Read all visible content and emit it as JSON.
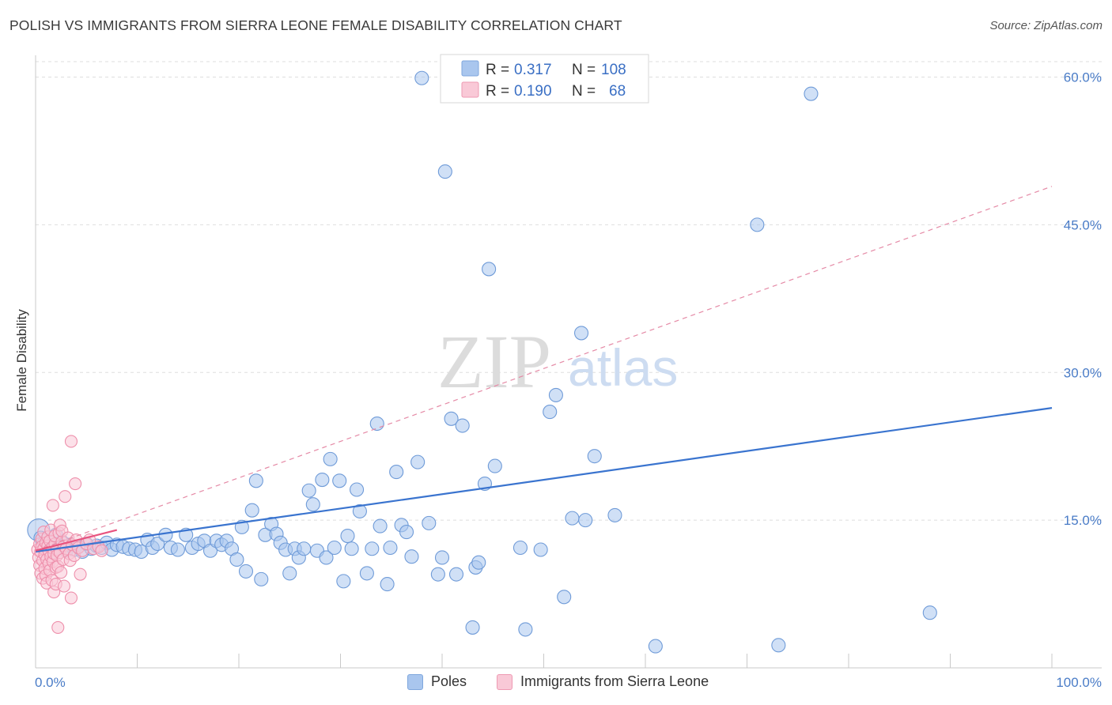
{
  "header": {
    "title": "POLISH VS IMMIGRANTS FROM SIERRA LEONE FEMALE DISABILITY CORRELATION CHART",
    "source": "Source: ZipAtlas.com"
  },
  "watermark": {
    "zip": "ZIP",
    "atlas": "atlas"
  },
  "legend": {
    "rows": [
      {
        "r_label": "R =",
        "r_value": "0.317",
        "n_label": "N =",
        "n_value": "108",
        "color": "#a9c6ee"
      },
      {
        "r_label": "R =",
        "r_value": "0.190",
        "n_label": "N =",
        "n_value": "68",
        "color": "#f5b6c8"
      }
    ]
  },
  "bottom_legend": [
    {
      "label": "Poles",
      "color": "#a9c6ee",
      "border": "#7fa7dd"
    },
    {
      "label": "Immigrants from Sierra Leone",
      "color": "#f9c9d7",
      "border": "#ee9ab3"
    }
  ],
  "chart_data": {
    "type": "scatter",
    "title": "POLISH VS IMMIGRANTS FROM SIERRA LEONE FEMALE DISABILITY CORRELATION CHART",
    "xlabel": "",
    "ylabel": "Female Disability",
    "xlim": [
      0,
      100
    ],
    "ylim": [
      0,
      62
    ],
    "x_ticks_labeled": [
      "0.0%",
      "100.0%"
    ],
    "y_ticks": [
      15,
      30,
      45,
      60
    ],
    "y_tick_labels": [
      "15.0%",
      "30.0%",
      "45.0%",
      "60.0%"
    ],
    "grid": "horizontal dashed",
    "legend_position": "top-center",
    "series": [
      {
        "name": "Poles",
        "color": "#a9c6ee",
        "stroke": "#6f9bd8",
        "trend": {
          "x": [
            0,
            100
          ],
          "y": [
            11.8,
            26.4
          ],
          "style": "solid",
          "color": "#3a74cf"
        },
        "points": [
          [
            0.3,
            14.0
          ],
          [
            0.5,
            13.2
          ],
          [
            0.8,
            12.6
          ],
          [
            1.0,
            12.0
          ],
          [
            1.2,
            13.0
          ],
          [
            1.5,
            12.4
          ],
          [
            1.8,
            11.8
          ],
          [
            2.0,
            13.5
          ],
          [
            2.3,
            12.2
          ],
          [
            2.6,
            12.8
          ],
          [
            3.0,
            11.9
          ],
          [
            3.4,
            12.5
          ],
          [
            3.8,
            12.0
          ],
          [
            4.2,
            12.3
          ],
          [
            4.6,
            11.8
          ],
          [
            5.0,
            12.6
          ],
          [
            5.5,
            12.1
          ],
          [
            6.0,
            12.4
          ],
          [
            6.5,
            12.2
          ],
          [
            7.0,
            12.7
          ],
          [
            7.5,
            12.0
          ],
          [
            8.0,
            12.5
          ],
          [
            8.6,
            12.3
          ],
          [
            9.2,
            12.1
          ],
          [
            9.8,
            12.0
          ],
          [
            10.4,
            11.8
          ],
          [
            11.0,
            13.0
          ],
          [
            11.5,
            12.2
          ],
          [
            12.0,
            12.6
          ],
          [
            12.8,
            13.5
          ],
          [
            13.3,
            12.2
          ],
          [
            14.0,
            12.0
          ],
          [
            14.8,
            13.5
          ],
          [
            15.4,
            12.2
          ],
          [
            16.0,
            12.6
          ],
          [
            16.6,
            12.9
          ],
          [
            17.2,
            11.9
          ],
          [
            17.8,
            12.9
          ],
          [
            18.3,
            12.5
          ],
          [
            18.8,
            12.9
          ],
          [
            19.3,
            12.1
          ],
          [
            19.8,
            11.0
          ],
          [
            20.3,
            14.3
          ],
          [
            20.7,
            9.8
          ],
          [
            21.3,
            16.0
          ],
          [
            21.7,
            19.0
          ],
          [
            22.2,
            9.0
          ],
          [
            22.6,
            13.5
          ],
          [
            23.2,
            14.6
          ],
          [
            23.7,
            13.6
          ],
          [
            24.1,
            12.7
          ],
          [
            24.6,
            12.0
          ],
          [
            25.0,
            9.6
          ],
          [
            25.5,
            12.1
          ],
          [
            25.9,
            11.2
          ],
          [
            26.4,
            12.1
          ],
          [
            26.9,
            18.0
          ],
          [
            27.3,
            16.6
          ],
          [
            27.7,
            11.9
          ],
          [
            28.2,
            19.1
          ],
          [
            28.6,
            11.2
          ],
          [
            29.0,
            21.2
          ],
          [
            29.4,
            12.2
          ],
          [
            29.9,
            19.0
          ],
          [
            30.3,
            8.8
          ],
          [
            30.7,
            13.4
          ],
          [
            31.1,
            12.1
          ],
          [
            31.6,
            18.1
          ],
          [
            31.9,
            15.9
          ],
          [
            32.6,
            9.6
          ],
          [
            33.1,
            12.1
          ],
          [
            33.6,
            24.8
          ],
          [
            33.9,
            14.4
          ],
          [
            34.6,
            8.5
          ],
          [
            34.9,
            12.2
          ],
          [
            35.5,
            19.9
          ],
          [
            36.0,
            14.5
          ],
          [
            36.5,
            13.8
          ],
          [
            37.0,
            11.3
          ],
          [
            37.6,
            20.9
          ],
          [
            38.0,
            59.9
          ],
          [
            38.7,
            14.7
          ],
          [
            39.6,
            9.5
          ],
          [
            40.0,
            11.2
          ],
          [
            40.3,
            50.4
          ],
          [
            40.9,
            25.3
          ],
          [
            41.4,
            9.5
          ],
          [
            42.0,
            24.6
          ],
          [
            43.0,
            4.1
          ],
          [
            43.3,
            10.2
          ],
          [
            43.6,
            10.7
          ],
          [
            44.2,
            18.7
          ],
          [
            44.6,
            40.5
          ],
          [
            45.2,
            20.5
          ],
          [
            47.7,
            12.2
          ],
          [
            48.2,
            3.9
          ],
          [
            49.7,
            12.0
          ],
          [
            50.6,
            26.0
          ],
          [
            51.2,
            27.7
          ],
          [
            52.0,
            7.2
          ],
          [
            52.8,
            15.2
          ],
          [
            53.7,
            34.0
          ],
          [
            54.1,
            15.0
          ],
          [
            55.0,
            21.5
          ],
          [
            57.0,
            15.5
          ],
          [
            61.0,
            2.2
          ],
          [
            71.0,
            45.0
          ],
          [
            73.1,
            2.3
          ],
          [
            76.3,
            58.3
          ],
          [
            88.0,
            5.6
          ]
        ]
      },
      {
        "name": "Immigrants from Sierra Leone",
        "color": "#f9c9d7",
        "stroke": "#ee8fab",
        "trend_solid": {
          "x": [
            0,
            8
          ],
          "y": [
            11.9,
            14.0
          ],
          "style": "solid",
          "color": "#e8537f"
        },
        "trend_dashed": {
          "x": [
            0,
            100
          ],
          "y": [
            11.9,
            48.9
          ],
          "style": "dashed",
          "color": "#e58aa6"
        },
        "points": [
          [
            0.2,
            12.0
          ],
          [
            0.3,
            11.2
          ],
          [
            0.4,
            10.4
          ],
          [
            0.4,
            12.6
          ],
          [
            0.5,
            9.6
          ],
          [
            0.5,
            11.8
          ],
          [
            0.6,
            13.1
          ],
          [
            0.6,
            12.3
          ],
          [
            0.7,
            9.1
          ],
          [
            0.7,
            10.9
          ],
          [
            0.8,
            12.1
          ],
          [
            0.8,
            13.8
          ],
          [
            0.9,
            11.5
          ],
          [
            0.9,
            10.1
          ],
          [
            1.0,
            9.4
          ],
          [
            1.0,
            12.7
          ],
          [
            1.1,
            11.0
          ],
          [
            1.1,
            8.6
          ],
          [
            1.2,
            12.4
          ],
          [
            1.2,
            13.3
          ],
          [
            1.3,
            10.6
          ],
          [
            1.3,
            11.9
          ],
          [
            1.4,
            9.9
          ],
          [
            1.4,
            12.9
          ],
          [
            1.5,
            11.3
          ],
          [
            1.5,
            14.0
          ],
          [
            1.6,
            8.9
          ],
          [
            1.6,
            12.2
          ],
          [
            1.7,
            10.8
          ],
          [
            1.7,
            16.5
          ],
          [
            1.8,
            11.6
          ],
          [
            1.8,
            7.7
          ],
          [
            1.9,
            12.6
          ],
          [
            1.9,
            13.4
          ],
          [
            2.0,
            10.2
          ],
          [
            2.0,
            8.5
          ],
          [
            2.1,
            12.0
          ],
          [
            2.1,
            11.4
          ],
          [
            2.2,
            4.1
          ],
          [
            2.2,
            10.3
          ],
          [
            2.3,
            13.7
          ],
          [
            2.4,
            14.5
          ],
          [
            2.4,
            11.7
          ],
          [
            2.5,
            9.7
          ],
          [
            2.6,
            12.8
          ],
          [
            2.6,
            13.9
          ],
          [
            2.7,
            11.0
          ],
          [
            2.8,
            12.4
          ],
          [
            2.8,
            8.3
          ],
          [
            2.9,
            17.4
          ],
          [
            3.0,
            12.1
          ],
          [
            3.2,
            13.2
          ],
          [
            3.3,
            11.6
          ],
          [
            3.4,
            10.9
          ],
          [
            3.5,
            23.0
          ],
          [
            3.5,
            7.1
          ],
          [
            3.6,
            12.5
          ],
          [
            3.8,
            11.4
          ],
          [
            3.9,
            18.7
          ],
          [
            4.0,
            13.0
          ],
          [
            4.2,
            12.2
          ],
          [
            4.4,
            9.5
          ],
          [
            4.6,
            11.9
          ],
          [
            5.0,
            12.6
          ],
          [
            5.3,
            13.0
          ],
          [
            5.7,
            12.1
          ],
          [
            6.2,
            12.3
          ],
          [
            6.5,
            11.9
          ]
        ]
      }
    ]
  }
}
